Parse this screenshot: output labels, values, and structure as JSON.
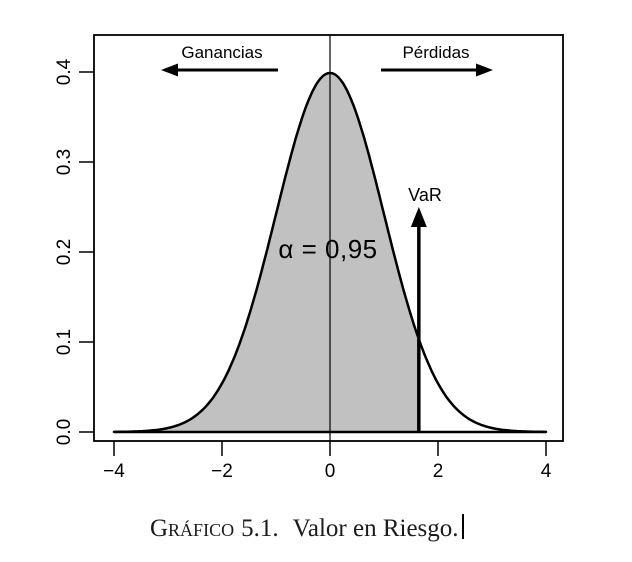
{
  "caption": {
    "label": "Gráfico",
    "number": "5.1.",
    "title": "Valor en Riesgo."
  },
  "chart_data": {
    "type": "area",
    "title": "",
    "xlabel": "",
    "ylabel": "",
    "description": "Standard normal density; shaded area alpha = 0.95 up to the VaR quantile, gains to the left, losses to the right",
    "distribution": {
      "name": "normal",
      "mean": 0,
      "sd": 1
    },
    "x": [
      -4,
      -3.5,
      -3,
      -2.5,
      -2,
      -1.5,
      -1,
      -0.5,
      0,
      0.5,
      1,
      1.5,
      2,
      2.5,
      3,
      3.5,
      4
    ],
    "density": [
      0.0001,
      0.0009,
      0.0044,
      0.0175,
      0.054,
      0.1295,
      0.242,
      0.3521,
      0.3989,
      0.3521,
      0.242,
      0.1295,
      0.054,
      0.0175,
      0.0044,
      0.0009,
      0.0001
    ],
    "x_range": [
      -4,
      4
    ],
    "ylim": [
      0,
      0.44
    ],
    "peak_density": 0.3989,
    "x_ticks": {
      "values": [
        -4,
        -2,
        0,
        2,
        4
      ],
      "labels": [
        "−4",
        "−2",
        "0",
        "2",
        "4"
      ]
    },
    "y_ticks": {
      "values": [
        0,
        0.1,
        0.2,
        0.3,
        0.4
      ],
      "labels": [
        "0.0",
        "0.1",
        "0.2",
        "0.3",
        "0.4"
      ]
    },
    "center_line_x": 0,
    "baseline_y": 0,
    "var_x": 1.645,
    "var_arrow_top_density": 0.25,
    "shaded_region": {
      "from": -4,
      "to": 1.645,
      "alpha": 0.95,
      "fill": "#c1c1c1"
    },
    "labels": {
      "alpha": "α = 0,95",
      "var": "VaR",
      "gains": "Ganancias",
      "losses": "Pérdidas"
    },
    "colors": {
      "line": "#000000",
      "fill": "#c1c1c1",
      "background": "#ffffff"
    },
    "grid": false,
    "legend": false
  }
}
